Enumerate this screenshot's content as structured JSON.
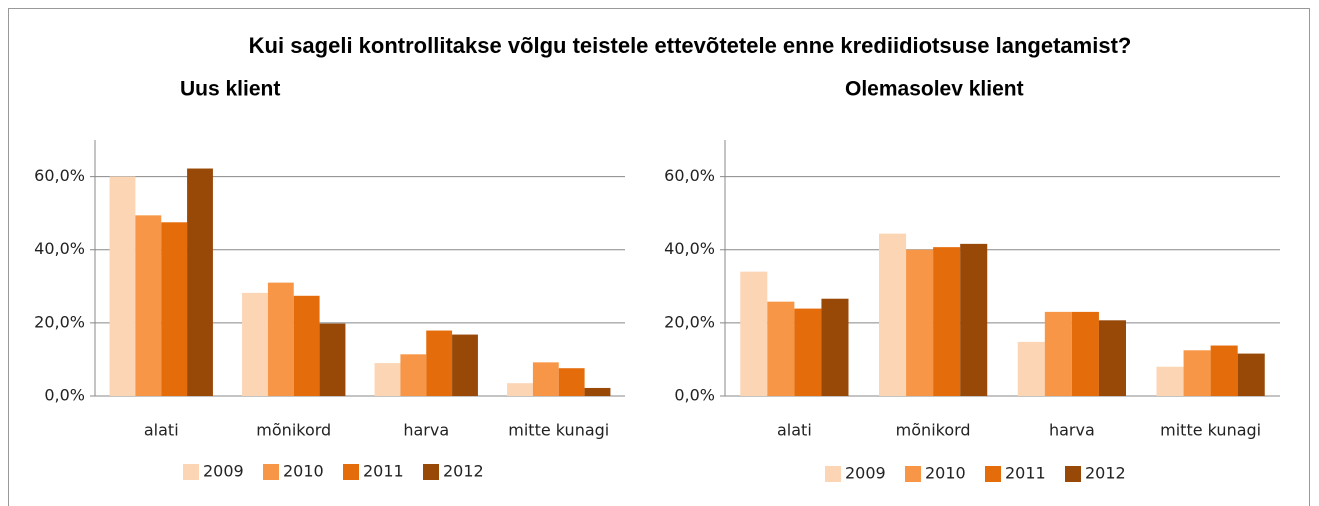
{
  "title": "Kui sageli kontrollitakse võlgu teistele ettevõtetele enne krediidiotsuse langetamist?",
  "chart_data": [
    {
      "type": "bar",
      "title": "Uus klient",
      "categories": [
        "alati",
        "mõnikord",
        "harva",
        "mitte kunagi"
      ],
      "series": [
        {
          "name": "2009",
          "color": "#fcd5b5",
          "values": [
            60,
            28.2,
            9,
            3.5
          ]
        },
        {
          "name": "2010",
          "color": "#f79646",
          "values": [
            49.4,
            31,
            11.4,
            9.2
          ]
        },
        {
          "name": "2011",
          "color": "#e46c0a",
          "values": [
            47.5,
            27.4,
            17.9,
            7.6
          ]
        },
        {
          "name": "2012",
          "color": "#984807",
          "values": [
            62.2,
            19.8,
            16.8,
            2.2
          ]
        }
      ],
      "ylim": [
        0,
        70
      ],
      "yticks": [
        {
          "value": 0,
          "label": "0,0%"
        },
        {
          "value": 20,
          "label": "20,0%"
        },
        {
          "value": 40,
          "label": "40,0%"
        },
        {
          "value": 60,
          "label": "60,0%"
        }
      ],
      "grid": true,
      "legend": "bottom"
    },
    {
      "type": "bar",
      "title": "Olemasolev klient",
      "categories": [
        "alati",
        "mõnikord",
        "harva",
        "mitte kunagi"
      ],
      "series": [
        {
          "name": "2009",
          "color": "#fcd5b5",
          "values": [
            34,
            44.4,
            14.8,
            8
          ]
        },
        {
          "name": "2010",
          "color": "#f79646",
          "values": [
            25.8,
            40,
            23,
            12.5
          ]
        },
        {
          "name": "2011",
          "color": "#e46c0a",
          "values": [
            23.9,
            40.7,
            23,
            13.8
          ]
        },
        {
          "name": "2012",
          "color": "#984807",
          "values": [
            26.6,
            41.6,
            20.7,
            11.6
          ]
        }
      ],
      "ylim": [
        0,
        70
      ],
      "yticks": [
        {
          "value": 0,
          "label": "0,0%"
        },
        {
          "value": 20,
          "label": "20,0%"
        },
        {
          "value": 40,
          "label": "40,0%"
        },
        {
          "value": 60,
          "label": "60,0%"
        }
      ],
      "grid": true,
      "legend": "bottom"
    }
  ]
}
